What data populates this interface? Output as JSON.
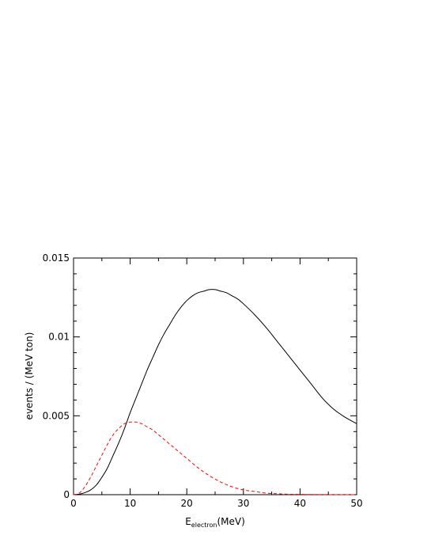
{
  "chart_data": {
    "type": "line",
    "title": "",
    "xlabel_main": "E",
    "xlabel_sub": "electron",
    "xlabel_unit": "(MeV)",
    "ylabel": "events / (MeV ton)",
    "xlim": [
      0,
      50
    ],
    "ylim": [
      0,
      0.015
    ],
    "xticks": [
      0,
      10,
      20,
      30,
      40,
      50
    ],
    "xtick_labels": [
      "0",
      "10",
      "20",
      "30",
      "40",
      "50"
    ],
    "yticks": [
      0,
      0.005,
      0.01,
      0.015
    ],
    "ytick_labels": [
      "0",
      "0.005",
      "0.01",
      "0.015"
    ],
    "grid": false,
    "series": [
      {
        "color": "#000000",
        "style": "solid",
        "x": [
          0,
          1,
          2,
          3,
          4,
          5,
          6,
          7,
          8,
          9,
          10,
          11,
          12,
          13,
          14,
          15,
          16,
          17,
          18,
          19,
          20,
          21,
          22,
          23,
          24,
          25,
          26,
          27,
          28,
          29,
          30,
          32,
          34,
          36,
          38,
          40,
          42,
          44,
          46,
          48,
          50
        ],
        "y": [
          0,
          3e-05,
          0.00013,
          0.0003,
          0.0006,
          0.0011,
          0.0017,
          0.0025,
          0.0033,
          0.0042,
          0.0052,
          0.0061,
          0.007,
          0.0079,
          0.0087,
          0.0095,
          0.0102,
          0.0108,
          0.0114,
          0.0119,
          0.0123,
          0.0126,
          0.0128,
          0.0129,
          0.013,
          0.013,
          0.0129,
          0.0128,
          0.0126,
          0.0124,
          0.0121,
          0.0114,
          0.0106,
          0.0097,
          0.0088,
          0.0079,
          0.007,
          0.0061,
          0.0054,
          0.0049,
          0.0045
        ]
      },
      {
        "color": "#ff0000",
        "style": "dashed",
        "x": [
          0,
          1,
          2,
          3,
          4,
          5,
          6,
          7,
          8,
          9,
          10,
          11,
          12,
          13,
          14,
          15,
          16,
          17,
          18,
          19,
          20,
          22,
          24,
          26,
          28,
          30,
          32,
          34,
          36,
          38,
          40,
          42,
          44,
          46,
          48,
          50
        ],
        "y": [
          0,
          0.0001,
          0.0005,
          0.0011,
          0.0018,
          0.0025,
          0.0032,
          0.0038,
          0.0042,
          0.0045,
          0.0046,
          0.0046,
          0.0045,
          0.0043,
          0.0041,
          0.0038,
          0.0035,
          0.0032,
          0.0029,
          0.0026,
          0.0023,
          0.0017,
          0.0012,
          0.0008,
          0.0005,
          0.0003,
          0.0002,
          0.0001,
          6e-05,
          3e-05,
          2e-05,
          1e-05,
          5e-06,
          2e-06,
          1e-06,
          0
        ]
      }
    ]
  }
}
